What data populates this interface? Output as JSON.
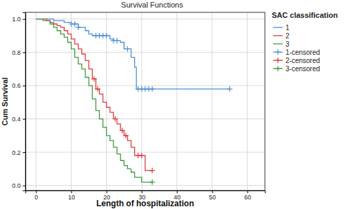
{
  "chart_data": {
    "type": "survival",
    "title": "Survival Functions",
    "x_label": "Length of hospitalization",
    "y_label": "Cum Survival",
    "legend_title": "SAC classification",
    "legend": "right",
    "grid": true,
    "xlim": [
      -3,
      65
    ],
    "ylim": [
      -0.03,
      1.04
    ],
    "xticks": [
      0,
      10,
      20,
      30,
      40,
      50,
      60
    ],
    "yticks": [
      {
        "value": 0,
        "label": "0.0"
      },
      {
        "value": 0.2,
        "label": "0.2"
      },
      {
        "value": 0.4,
        "label": "0.4"
      },
      {
        "value": 0.6,
        "label": "0.6"
      },
      {
        "value": 0.8,
        "label": "0.8"
      },
      {
        "value": 1,
        "label": "1.0"
      }
    ],
    "series": [
      {
        "name": "1",
        "type": "step",
        "line_style": "solid",
        "color": "#4a8fd6",
        "x": [
          0,
          5,
          8,
          10,
          12,
          14,
          15,
          16,
          21,
          22,
          24,
          25,
          27,
          28,
          28.5,
          55
        ],
        "values": [
          1,
          0.99,
          0.98,
          0.97,
          0.95,
          0.93,
          0.91,
          0.9,
          0.88,
          0.87,
          0.86,
          0.82,
          0.77,
          0.71,
          0.58,
          0.58
        ]
      },
      {
        "name": "2",
        "type": "step",
        "line_style": "solid",
        "color": "#de3a3f",
        "x": [
          0,
          3,
          4,
          5,
          6,
          7,
          8,
          9,
          10,
          11,
          12,
          13,
          14,
          15,
          16,
          17,
          18,
          19,
          20,
          21,
          22,
          23,
          24,
          25,
          26,
          27,
          28,
          31,
          33
        ],
        "values": [
          1,
          0.99,
          0.98,
          0.97,
          0.96,
          0.95,
          0.93,
          0.91,
          0.88,
          0.85,
          0.82,
          0.79,
          0.75,
          0.7,
          0.64,
          0.58,
          0.55,
          0.5,
          0.47,
          0.44,
          0.4,
          0.37,
          0.33,
          0.3,
          0.27,
          0.23,
          0.18,
          0.09,
          0.09
        ]
      },
      {
        "name": "3",
        "type": "step",
        "line_style": "solid",
        "color": "#3d9a3d",
        "x": [
          0,
          2,
          4,
          5,
          6,
          7,
          8,
          9,
          10,
          11,
          12,
          13,
          14,
          15,
          16,
          17,
          18,
          19,
          20,
          21,
          22,
          23,
          24,
          25,
          26,
          27,
          28,
          30,
          33
        ],
        "values": [
          1,
          0.99,
          0.97,
          0.95,
          0.93,
          0.91,
          0.89,
          0.86,
          0.82,
          0.77,
          0.73,
          0.7,
          0.65,
          0.6,
          0.52,
          0.45,
          0.4,
          0.35,
          0.3,
          0.27,
          0.23,
          0.19,
          0.15,
          0.12,
          0.1,
          0.08,
          0.05,
          0.02,
          0.02
        ]
      },
      {
        "name": "1-censored",
        "type": "scatter",
        "marker": "plus",
        "color": "#4a8fd6",
        "x": [
          10,
          11,
          12,
          17,
          18,
          19,
          20,
          22,
          23,
          26,
          29,
          30,
          31,
          32,
          33,
          55
        ],
        "values": [
          0.97,
          0.97,
          0.95,
          0.9,
          0.9,
          0.9,
          0.9,
          0.87,
          0.87,
          0.82,
          0.58,
          0.58,
          0.58,
          0.58,
          0.58,
          0.58
        ]
      },
      {
        "name": "2-censored",
        "type": "scatter",
        "marker": "plus",
        "color": "#de3a3f",
        "x": [
          16.5,
          17.5,
          22.5,
          24.5,
          25.5,
          29,
          30,
          33
        ],
        "values": [
          0.64,
          0.58,
          0.4,
          0.33,
          0.3,
          0.18,
          0.18,
          0.09
        ]
      },
      {
        "name": "3-censored",
        "type": "scatter",
        "marker": "plus",
        "color": "#3d9a3d",
        "x": [
          33
        ],
        "values": [
          0.02
        ]
      }
    ]
  }
}
